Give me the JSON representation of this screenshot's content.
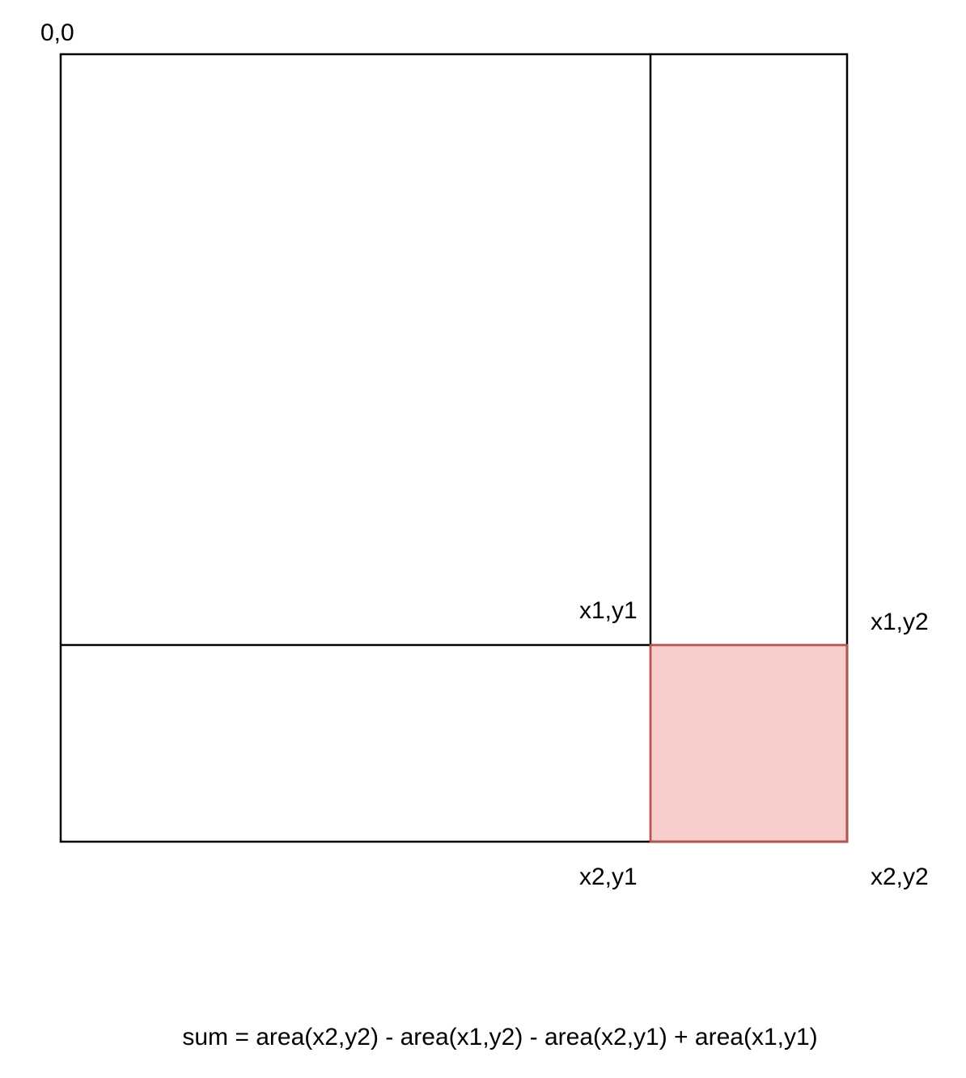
{
  "labels": {
    "origin": "0,0",
    "x1y1": "x1,y1",
    "x1y2": "x1,y2",
    "x2y1": "x2,y1",
    "x2y2": "x2,y2"
  },
  "formula": "sum = area(x2,y2) - area(x1,y2) - area(x2,y1) + area(x1,y1)",
  "colors": {
    "stroke": "#000000",
    "highlight_fill": "#f8cecc",
    "highlight_stroke": "#b85450"
  }
}
